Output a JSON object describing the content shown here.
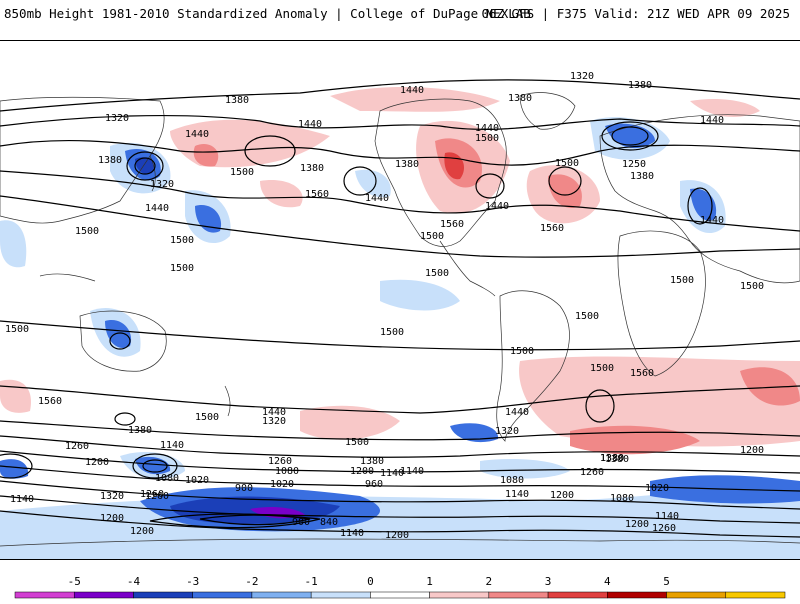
{
  "header": {
    "left_title": "850mb Height 1981-2010 Standardized Anomaly | College of DuPage NEXLAB",
    "right_title": "06Z GFS | F375 Valid: 21Z WED APR 09 2025"
  },
  "colorbar": {
    "ticks": [
      "-5",
      "-4",
      "-3",
      "-2",
      "-1",
      "0",
      "1",
      "2",
      "3",
      "4",
      "5"
    ],
    "colors": [
      "#d23fd2",
      "#7a00c8",
      "#1b3fb8",
      "#3a6fe0",
      "#7fb0f0",
      "#c8e0fa",
      "#ffffff",
      "#f8c8c8",
      "#f08888",
      "#e04040",
      "#b00000",
      "#e8a000",
      "#f8c800"
    ]
  },
  "contour_labels": [
    "1320",
    "1380",
    "1440",
    "1380",
    "1320",
    "1440",
    "1380",
    "1440",
    "1440",
    "1380",
    "1380",
    "1380",
    "1500",
    "1440",
    "1500",
    "1440",
    "1560",
    "1500",
    "1440",
    "1250",
    "1320",
    "1380",
    "1440",
    "1500",
    "1560",
    "1500",
    "1440",
    "1500",
    "1500",
    "1500",
    "1560",
    "1500",
    "1500",
    "1500",
    "1500",
    "1500",
    "1500",
    "1500",
    "1560",
    "1500",
    "1560",
    "1440",
    "1380",
    "1320",
    "1440",
    "1380",
    "1140",
    "1260",
    "1200",
    "1260",
    "1380",
    "1500",
    "1320",
    "1380",
    "1260",
    "1200",
    "1080",
    "1020",
    "1140",
    "960",
    "1080",
    "1020",
    "900",
    "1140",
    "1260",
    "1200",
    "1140",
    "1200",
    "1080",
    "1080",
    "1140",
    "1200",
    "1020",
    "1140",
    "1200",
    "1320",
    "1260",
    "900",
    "840",
    "1140",
    "1200",
    "1260",
    "1380",
    "1200"
  ]
}
